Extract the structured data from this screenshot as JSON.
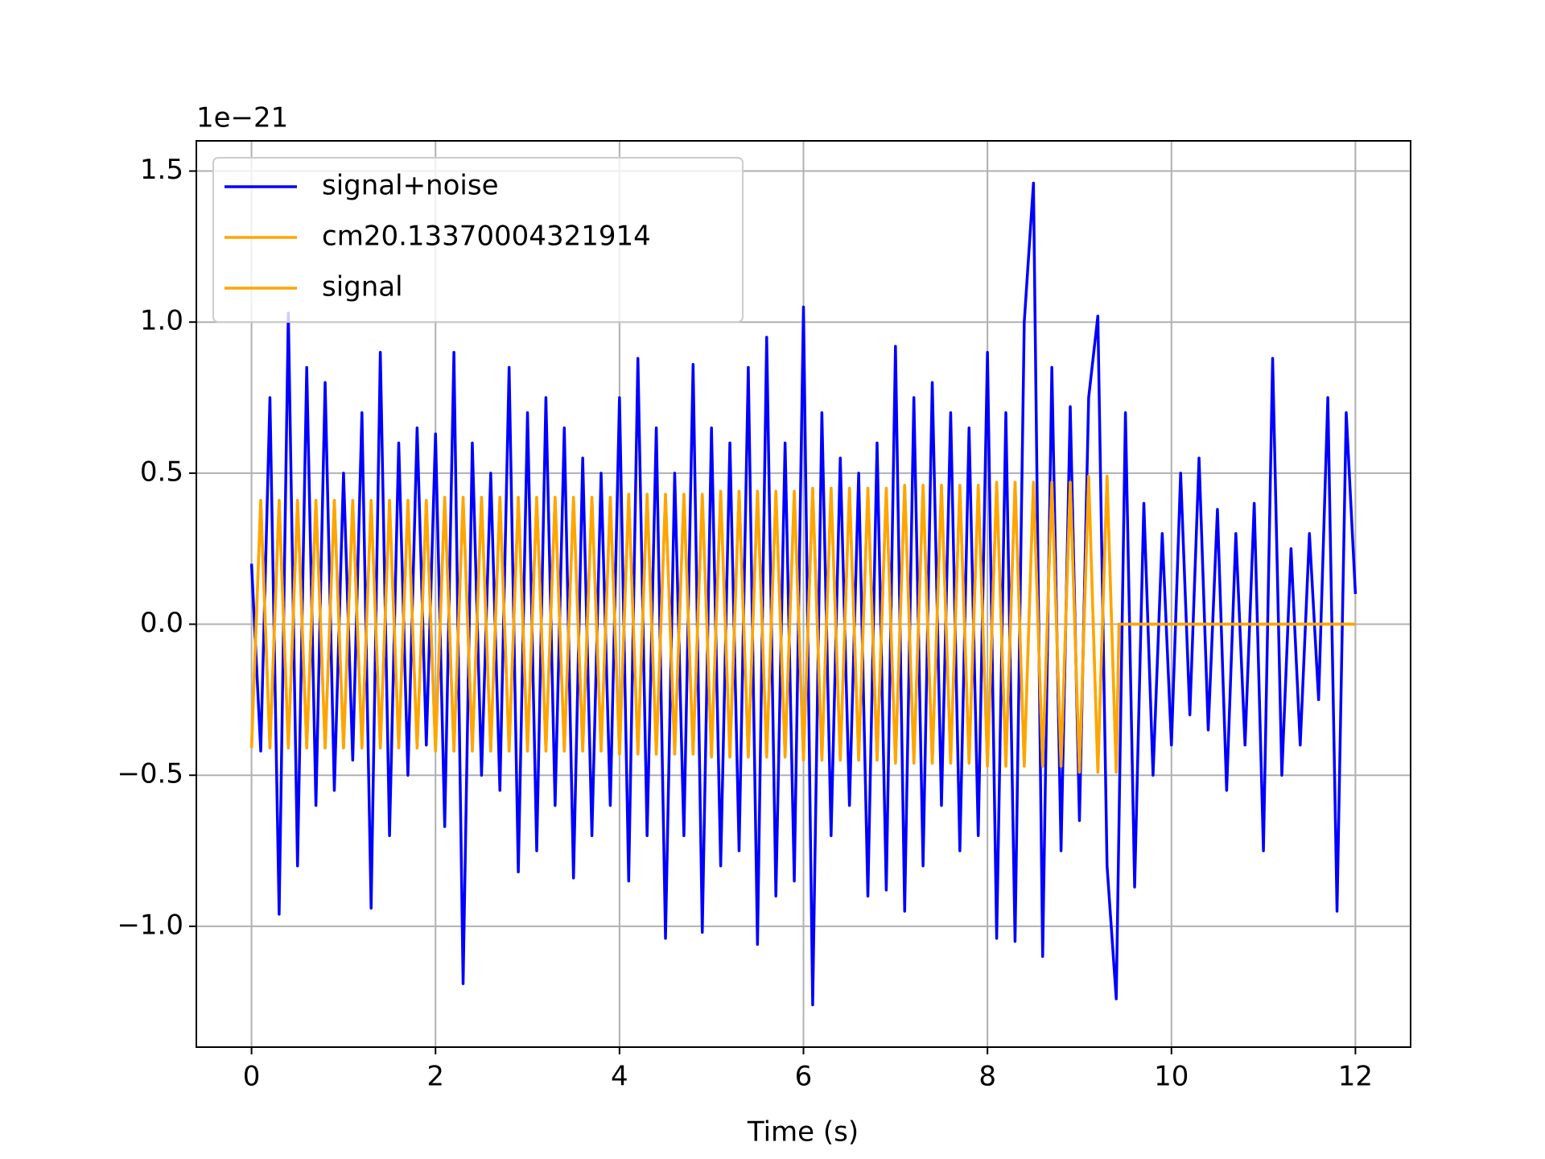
{
  "chart_data": {
    "type": "line",
    "x_label": "Time (s)",
    "y_offset_label": "1e−21",
    "xlim": [
      -0.6,
      12.6
    ],
    "ylim": [
      -1.4,
      1.6
    ],
    "xticks": [
      0,
      2,
      4,
      6,
      8,
      10,
      12
    ],
    "yticks": [
      {
        "value": -1,
        "label": "−1.0"
      },
      {
        "value": -0.5,
        "label": "−0.5"
      },
      {
        "value": 0,
        "label": "0.0"
      },
      0.5,
      {
        "value": 1,
        "label": "1.0"
      },
      1.5
    ],
    "grid": true,
    "legend": "upper left",
    "series": [
      {
        "name": "signal+noise",
        "color": "#0000ff",
        "x": [
          0,
          0.1,
          0.2,
          0.3,
          0.4,
          0.5,
          0.6,
          0.7,
          0.8,
          0.9,
          1,
          1.1,
          1.2,
          1.3,
          1.4,
          1.5,
          1.6,
          1.7,
          1.8,
          1.9,
          2,
          2.1,
          2.2,
          2.3,
          2.4,
          2.5,
          2.6,
          2.7,
          2.8,
          2.9,
          3,
          3.1,
          3.2,
          3.3,
          3.4,
          3.5,
          3.6,
          3.7,
          3.8,
          3.9,
          4,
          4.1,
          4.2,
          4.3,
          4.4,
          4.5,
          4.6,
          4.7,
          4.8,
          4.9,
          5,
          5.1,
          5.2,
          5.3,
          5.4,
          5.5,
          5.6,
          5.7,
          5.8,
          5.9,
          6,
          6.1,
          6.2,
          6.3,
          6.4,
          6.5,
          6.6,
          6.7,
          6.8,
          6.9,
          7,
          7.1,
          7.2,
          7.3,
          7.4,
          7.5,
          7.6,
          7.7,
          7.8,
          7.9,
          8,
          8.1,
          8.2,
          8.3,
          8.4,
          8.5,
          8.6,
          8.7,
          8.8,
          8.9,
          9,
          9.1,
          9.2,
          9.3,
          9.4,
          9.5,
          9.6,
          9.7,
          9.8,
          9.9,
          10,
          10.1,
          10.2,
          10.3,
          10.4,
          10.5,
          10.6,
          10.7,
          10.8,
          10.9,
          11,
          11.1,
          11.2,
          11.3,
          11.4,
          11.5,
          11.6,
          11.7,
          11.8,
          11.9,
          12
        ],
        "values": [
          0.2,
          -0.42,
          0.75,
          -0.96,
          1.03,
          -0.8,
          0.85,
          -0.6,
          0.8,
          -0.55,
          0.5,
          -0.45,
          0.7,
          -0.94,
          0.9,
          -0.7,
          0.6,
          -0.5,
          0.65,
          -0.4,
          0.63,
          -0.67,
          0.9,
          -1.19,
          0.6,
          -0.5,
          0.5,
          -0.55,
          0.85,
          -0.82,
          0.7,
          -0.75,
          0.75,
          -0.6,
          0.65,
          -0.84,
          0.55,
          -0.7,
          0.5,
          -0.6,
          0.75,
          -0.85,
          0.88,
          -0.7,
          0.65,
          -1.04,
          0.5,
          -0.7,
          0.86,
          -1.02,
          0.65,
          -0.8,
          0.6,
          -0.75,
          0.85,
          -1.06,
          0.95,
          -0.9,
          0.6,
          -0.85,
          1.05,
          -1.26,
          0.7,
          -0.7,
          0.55,
          -0.6,
          0.5,
          -0.9,
          0.6,
          -0.88,
          0.92,
          -0.95,
          0.75,
          -0.8,
          0.8,
          -0.6,
          0.7,
          -0.75,
          0.65,
          -0.7,
          0.9,
          -1.04,
          0.7,
          -1.05,
          1.0,
          1.46,
          -1.1,
          0.85,
          -0.75,
          0.72,
          -0.65,
          0.75,
          1.02,
          -0.8,
          -1.24,
          0.7,
          -0.87,
          0.4,
          -0.5,
          0.3,
          -0.4,
          0.5,
          -0.3,
          0.55,
          -0.35,
          0.38,
          -0.55,
          0.3,
          -0.4,
          0.4,
          -0.75,
          0.88,
          -0.5,
          0.25,
          -0.4,
          0.3,
          -0.25,
          0.75,
          -0.95,
          0.7,
          0.1
        ]
      },
      {
        "name": "cm20.13370004321914",
        "color": "#ffa500",
        "x": [
          0,
          0.1,
          0.2,
          0.3,
          0.4,
          0.5,
          0.6,
          0.7,
          0.8,
          0.9,
          1,
          1.1,
          1.2,
          1.3,
          1.4,
          1.5,
          1.6,
          1.7,
          1.8,
          1.9,
          2,
          2.1,
          2.2,
          2.3,
          2.4,
          2.5,
          2.6,
          2.7,
          2.8,
          2.9,
          3,
          3.1,
          3.2,
          3.3,
          3.4,
          3.5,
          3.6,
          3.7,
          3.8,
          3.9,
          4,
          4.1,
          4.2,
          4.3,
          4.4,
          4.5,
          4.6,
          4.7,
          4.8,
          4.9,
          5,
          5.1,
          5.2,
          5.3,
          5.4,
          5.5,
          5.6,
          5.7,
          5.8,
          5.9,
          6,
          6.1,
          6.2,
          6.3,
          6.4,
          6.5,
          6.6,
          6.7,
          6.8,
          6.9,
          7,
          7.1,
          7.2,
          7.3,
          7.4,
          7.5,
          7.6,
          7.7,
          7.8,
          7.9,
          8,
          8.1,
          8.2,
          8.3,
          8.4,
          8.5,
          8.6,
          8.7,
          8.8,
          8.9,
          9,
          9.1,
          9.2,
          9.3,
          9.4,
          9.43,
          12
        ],
        "values": [
          -0.41,
          0.41,
          -0.41,
          0.41,
          -0.41,
          0.41,
          -0.41,
          0.41,
          -0.41,
          0.41,
          -0.41,
          0.41,
          -0.41,
          0.41,
          -0.41,
          0.41,
          -0.41,
          0.41,
          -0.41,
          0.41,
          -0.42,
          0.42,
          -0.42,
          0.42,
          -0.42,
          0.42,
          -0.42,
          0.42,
          -0.42,
          0.42,
          -0.42,
          0.42,
          -0.42,
          0.42,
          -0.42,
          0.42,
          -0.42,
          0.42,
          -0.42,
          0.42,
          -0.43,
          0.43,
          -0.43,
          0.43,
          -0.43,
          0.43,
          -0.43,
          0.43,
          -0.43,
          0.43,
          -0.44,
          0.44,
          -0.44,
          0.44,
          -0.44,
          0.44,
          -0.44,
          0.44,
          -0.44,
          0.44,
          -0.45,
          0.45,
          -0.45,
          0.45,
          -0.45,
          0.45,
          -0.45,
          0.45,
          -0.45,
          0.45,
          -0.46,
          0.46,
          -0.46,
          0.46,
          -0.46,
          0.46,
          -0.46,
          0.46,
          -0.46,
          0.46,
          -0.47,
          0.47,
          -0.47,
          0.47,
          -0.47,
          0.47,
          -0.47,
          0.47,
          -0.47,
          0.47,
          -0.49,
          0.49,
          -0.49,
          0.49,
          -0.49,
          0,
          0
        ]
      },
      {
        "name": "signal",
        "color": "#ffa500",
        "x": [
          0,
          0.1,
          0.2,
          0.3,
          0.4,
          0.5,
          0.6,
          0.7,
          0.8,
          0.9,
          1,
          1.1,
          1.2,
          1.3,
          1.4,
          1.5,
          1.6,
          1.7,
          1.8,
          1.9,
          2,
          2.1,
          2.2,
          2.3,
          2.4,
          2.5,
          2.6,
          2.7,
          2.8,
          2.9,
          3,
          3.1,
          3.2,
          3.3,
          3.4,
          3.5,
          3.6,
          3.7,
          3.8,
          3.9,
          4,
          4.1,
          4.2,
          4.3,
          4.4,
          4.5,
          4.6,
          4.7,
          4.8,
          4.9,
          5,
          5.1,
          5.2,
          5.3,
          5.4,
          5.5,
          5.6,
          5.7,
          5.8,
          5.9,
          6,
          6.1,
          6.2,
          6.3,
          6.4,
          6.5,
          6.6,
          6.7,
          6.8,
          6.9,
          7,
          7.1,
          7.2,
          7.3,
          7.4,
          7.5,
          7.6,
          7.7,
          7.8,
          7.9,
          8,
          8.1,
          8.2,
          8.3,
          8.4,
          8.5,
          8.6,
          8.7,
          8.8,
          8.9,
          9,
          9.1,
          9.2,
          9.3,
          9.4,
          9.43,
          12
        ],
        "values": [
          -0.41,
          0.41,
          -0.41,
          0.41,
          -0.41,
          0.41,
          -0.41,
          0.41,
          -0.41,
          0.41,
          -0.41,
          0.41,
          -0.41,
          0.41,
          -0.41,
          0.41,
          -0.41,
          0.41,
          -0.41,
          0.41,
          -0.42,
          0.42,
          -0.42,
          0.42,
          -0.42,
          0.42,
          -0.42,
          0.42,
          -0.42,
          0.42,
          -0.42,
          0.42,
          -0.42,
          0.42,
          -0.42,
          0.42,
          -0.42,
          0.42,
          -0.42,
          0.42,
          -0.43,
          0.43,
          -0.43,
          0.43,
          -0.43,
          0.43,
          -0.43,
          0.43,
          -0.43,
          0.43,
          -0.44,
          0.44,
          -0.44,
          0.44,
          -0.44,
          0.44,
          -0.44,
          0.44,
          -0.44,
          0.44,
          -0.45,
          0.45,
          -0.45,
          0.45,
          -0.45,
          0.45,
          -0.45,
          0.45,
          -0.45,
          0.45,
          -0.46,
          0.46,
          -0.46,
          0.46,
          -0.46,
          0.46,
          -0.46,
          0.46,
          -0.46,
          0.46,
          -0.47,
          0.47,
          -0.47,
          0.47,
          -0.47,
          0.47,
          -0.47,
          0.47,
          -0.47,
          0.47,
          -0.49,
          0.49,
          -0.49,
          0.49,
          -0.49,
          0,
          0
        ]
      }
    ]
  }
}
